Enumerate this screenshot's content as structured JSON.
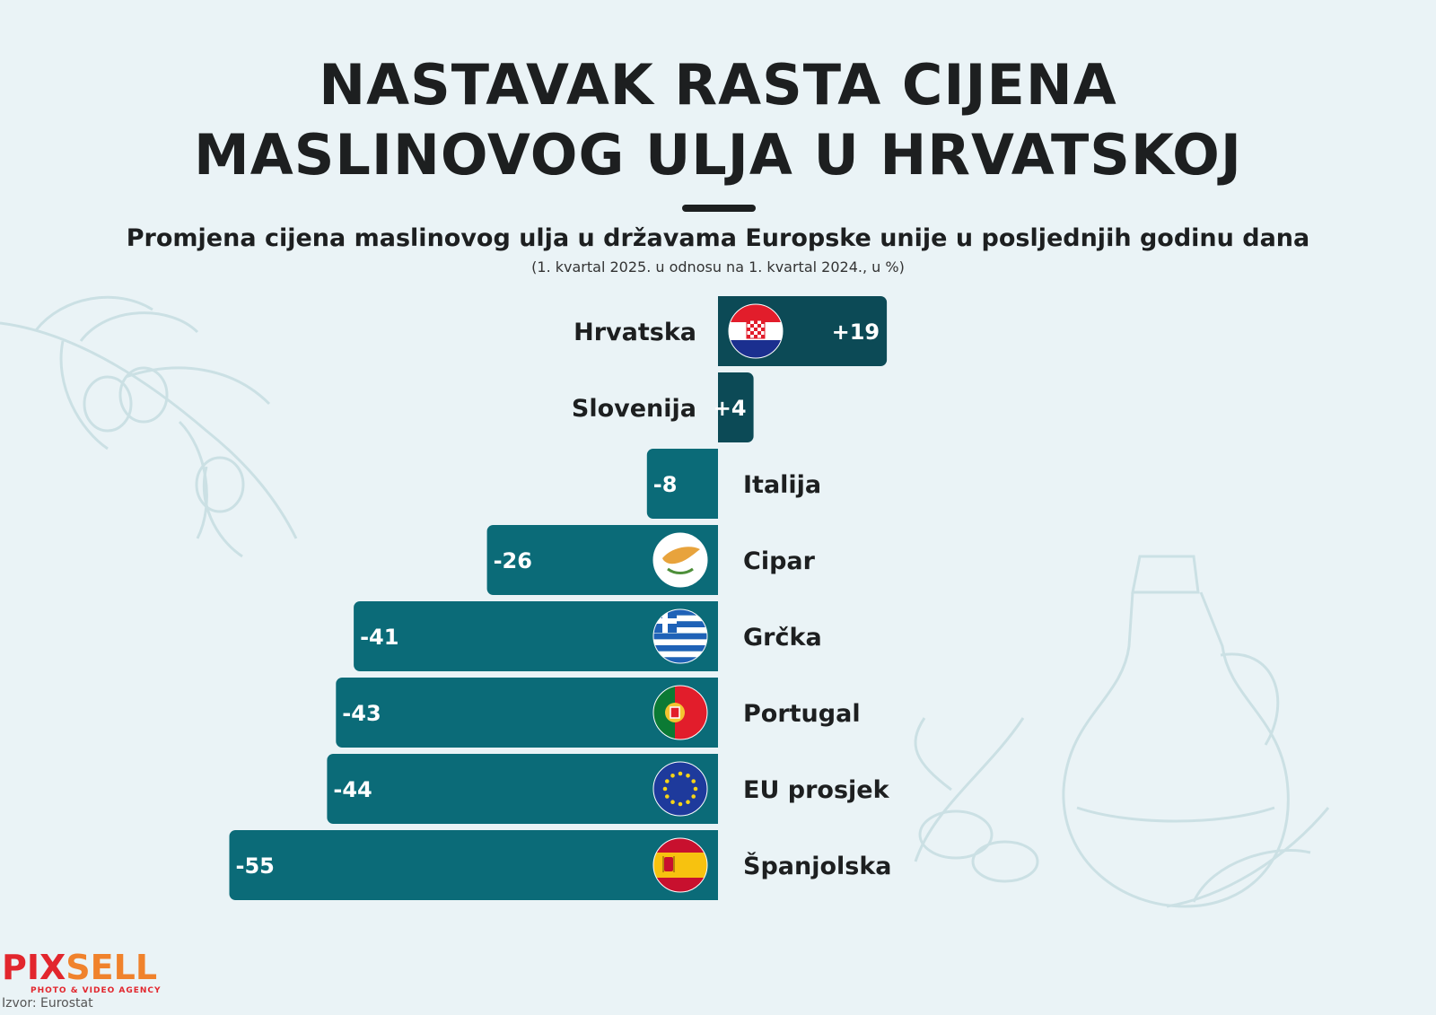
{
  "title_line1": "NASTAVAK RASTA CIJENA",
  "title_line2": "MASLINOVOG ULJA U HRVATSKOJ",
  "subtitle": "Promjena cijena maslinovog ulja u državama Europske unije u posljednjih godinu dana",
  "note": "(1. kvartal 2025. u odnosu na 1. kvartal 2024., u %)",
  "logo": {
    "part1": "PIX",
    "part2": "SELL",
    "tagline": "PHOTO & VIDEO AGENCY"
  },
  "source": "Izvor: Eurostat",
  "colors": {
    "bar_pos": "#0c4a56",
    "bar_neg": "#0b6b78",
    "text": "#1d1f20",
    "background": "#eaf3f6"
  },
  "chart_data": {
    "type": "bar",
    "orientation": "horizontal",
    "categories": [
      "Hrvatska",
      "Slovenija",
      "Italija",
      "Cipar",
      "Grčka",
      "Portugal",
      "EU prosjek",
      "Španjolska"
    ],
    "values": [
      19,
      4,
      -8,
      -26,
      -41,
      -43,
      -44,
      -55
    ],
    "value_labels": [
      "+19",
      "+4",
      "-8",
      "-26",
      "-41",
      "-43",
      "-44",
      "-55"
    ],
    "flags": [
      "croatia-flag-icon",
      null,
      null,
      "cyprus-flag-icon",
      "greece-flag-icon",
      "portugal-flag-icon",
      "eu-flag-icon",
      "spain-flag-icon"
    ]
  }
}
